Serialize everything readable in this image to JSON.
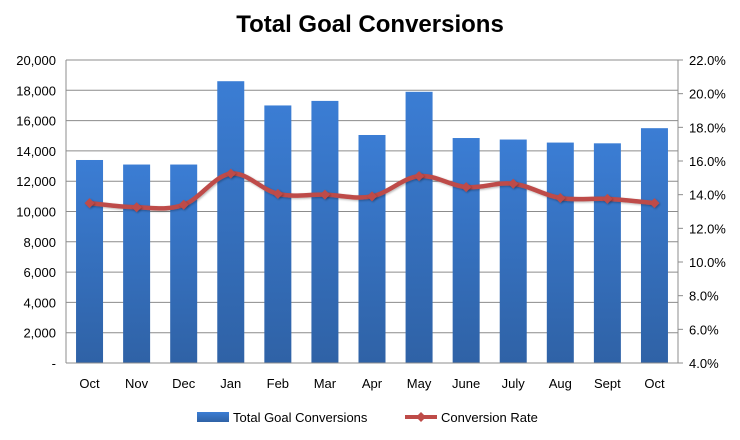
{
  "chart_data": {
    "type": "bar+line",
    "title": "Total Goal Conversions",
    "categories": [
      "Oct",
      "Nov",
      "Dec",
      "Jan",
      "Feb",
      "Mar",
      "Apr",
      "May",
      "June",
      "July",
      "Aug",
      "Sept",
      "Oct"
    ],
    "series": [
      {
        "name": "Total Goal Conversions",
        "type": "bar",
        "axis": "left",
        "color": "#3a7bd0",
        "values": [
          13400,
          13100,
          13100,
          18600,
          17000,
          17300,
          15050,
          17900,
          14850,
          14750,
          14550,
          14500,
          15500
        ]
      },
      {
        "name": "Conversion Rate",
        "type": "line",
        "axis": "right",
        "color": "#be4b48",
        "values": [
          13.5,
          13.25,
          13.4,
          15.25,
          14.05,
          14.0,
          13.9,
          15.1,
          14.45,
          14.65,
          13.8,
          13.75,
          13.5
        ]
      }
    ],
    "left_axis": {
      "ylim": [
        0,
        20000
      ],
      "ticks": [
        0,
        2000,
        4000,
        6000,
        8000,
        10000,
        12000,
        14000,
        16000,
        18000,
        20000
      ],
      "tick_labels": [
        "-",
        "2,000",
        "4,000",
        "6,000",
        "8,000",
        "10,000",
        "12,000",
        "14,000",
        "16,000",
        "18,000",
        "20,000"
      ]
    },
    "right_axis": {
      "ylim": [
        4,
        22
      ],
      "ticks": [
        4,
        6,
        8,
        10,
        12,
        14,
        16,
        18,
        20,
        22
      ],
      "tick_labels": [
        "4.0%",
        "6.0%",
        "8.0%",
        "10.0%",
        "12.0%",
        "14.0%",
        "16.0%",
        "18.0%",
        "20.0%",
        "22.0%"
      ]
    },
    "grid": true,
    "legend": {
      "placement": "bottom",
      "entries": [
        "Total Goal Conversions",
        "Conversion Rate"
      ]
    }
  }
}
